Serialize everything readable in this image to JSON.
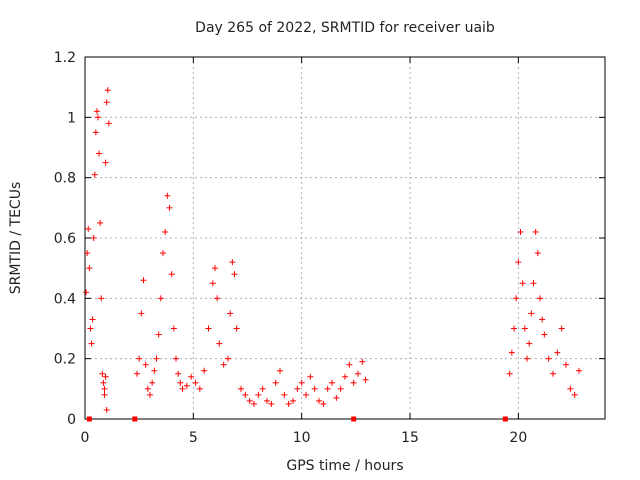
{
  "chart_data": {
    "type": "scatter",
    "title": "Day 265 of 2022, SRMTID for receiver uaib",
    "xlabel": "GPS time / hours",
    "ylabel": "SRMTID / TECUs",
    "xlim": [
      0,
      24
    ],
    "ylim": [
      0,
      1.2
    ],
    "xticks": [
      0,
      5,
      10,
      15,
      20
    ],
    "yticks": [
      0,
      0.2,
      0.4,
      0.6,
      0.8,
      1,
      1.2
    ],
    "xtick_labels": [
      "0",
      "5",
      "10",
      "15",
      "20"
    ],
    "ytick_labels": [
      "0",
      "0.2",
      "0.4",
      "0.6",
      "0.8",
      "1",
      "1.2"
    ],
    "grid": true,
    "marker": "+",
    "color": "#ff0000",
    "series": [
      {
        "name": "SRMTID",
        "x": [
          0.05,
          0.1,
          0.15,
          0.2,
          0.25,
          0.3,
          0.35,
          0.4,
          0.45,
          0.5,
          0.55,
          0.6,
          0.65,
          0.7,
          0.75,
          0.8,
          0.85,
          0.9,
          0.95,
          1.0,
          1.05,
          1.1,
          0.9,
          0.95,
          1.0,
          2.4,
          2.5,
          2.6,
          2.7,
          2.8,
          2.9,
          3.0,
          3.1,
          3.2,
          3.3,
          3.4,
          3.5,
          3.6,
          3.7,
          3.8,
          3.9,
          4.0,
          4.1,
          4.2,
          4.3,
          4.4,
          4.5,
          4.7,
          4.9,
          5.1,
          5.3,
          5.5,
          5.7,
          5.9,
          6.0,
          6.1,
          6.2,
          6.4,
          6.6,
          6.7,
          6.8,
          6.9,
          7.0,
          7.2,
          7.4,
          7.6,
          7.8,
          8.0,
          8.2,
          8.4,
          8.6,
          8.8,
          9.0,
          9.2,
          9.4,
          9.6,
          9.8,
          10.0,
          10.2,
          10.4,
          10.6,
          10.8,
          11.0,
          11.2,
          11.4,
          11.6,
          11.8,
          12.0,
          12.2,
          12.4,
          12.6,
          12.8,
          12.95,
          19.6,
          19.7,
          19.8,
          19.9,
          20.0,
          20.1,
          20.2,
          20.3,
          20.4,
          20.5,
          20.6,
          20.7,
          20.8,
          20.9,
          21.0,
          21.1,
          21.2,
          21.4,
          21.6,
          21.8,
          22.0,
          22.2,
          22.4,
          22.6,
          22.8
        ],
        "y": [
          0.42,
          0.55,
          0.63,
          0.5,
          0.3,
          0.25,
          0.33,
          0.6,
          0.81,
          0.95,
          1.02,
          1.0,
          0.88,
          0.65,
          0.4,
          0.15,
          0.12,
          0.1,
          0.85,
          1.05,
          1.09,
          0.98,
          0.08,
          0.14,
          0.03,
          0.15,
          0.2,
          0.35,
          0.46,
          0.18,
          0.1,
          0.08,
          0.12,
          0.16,
          0.2,
          0.28,
          0.4,
          0.55,
          0.62,
          0.74,
          0.7,
          0.48,
          0.3,
          0.2,
          0.15,
          0.12,
          0.1,
          0.11,
          0.14,
          0.12,
          0.1,
          0.16,
          0.3,
          0.45,
          0.5,
          0.4,
          0.25,
          0.18,
          0.2,
          0.35,
          0.52,
          0.48,
          0.3,
          0.1,
          0.08,
          0.06,
          0.05,
          0.08,
          0.1,
          0.06,
          0.05,
          0.12,
          0.16,
          0.08,
          0.05,
          0.06,
          0.1,
          0.12,
          0.08,
          0.14,
          0.1,
          0.06,
          0.05,
          0.1,
          0.12,
          0.07,
          0.1,
          0.14,
          0.18,
          0.12,
          0.15,
          0.19,
          0.13,
          0.15,
          0.22,
          0.3,
          0.4,
          0.52,
          0.62,
          0.45,
          0.3,
          0.2,
          0.25,
          0.35,
          0.45,
          0.62,
          0.55,
          0.4,
          0.33,
          0.28,
          0.2,
          0.15,
          0.22,
          0.3,
          0.18,
          0.1,
          0.08,
          0.16
        ]
      }
    ],
    "zero_markers_x": [
      0.2,
      2.3,
      12.4,
      19.4
    ]
  }
}
